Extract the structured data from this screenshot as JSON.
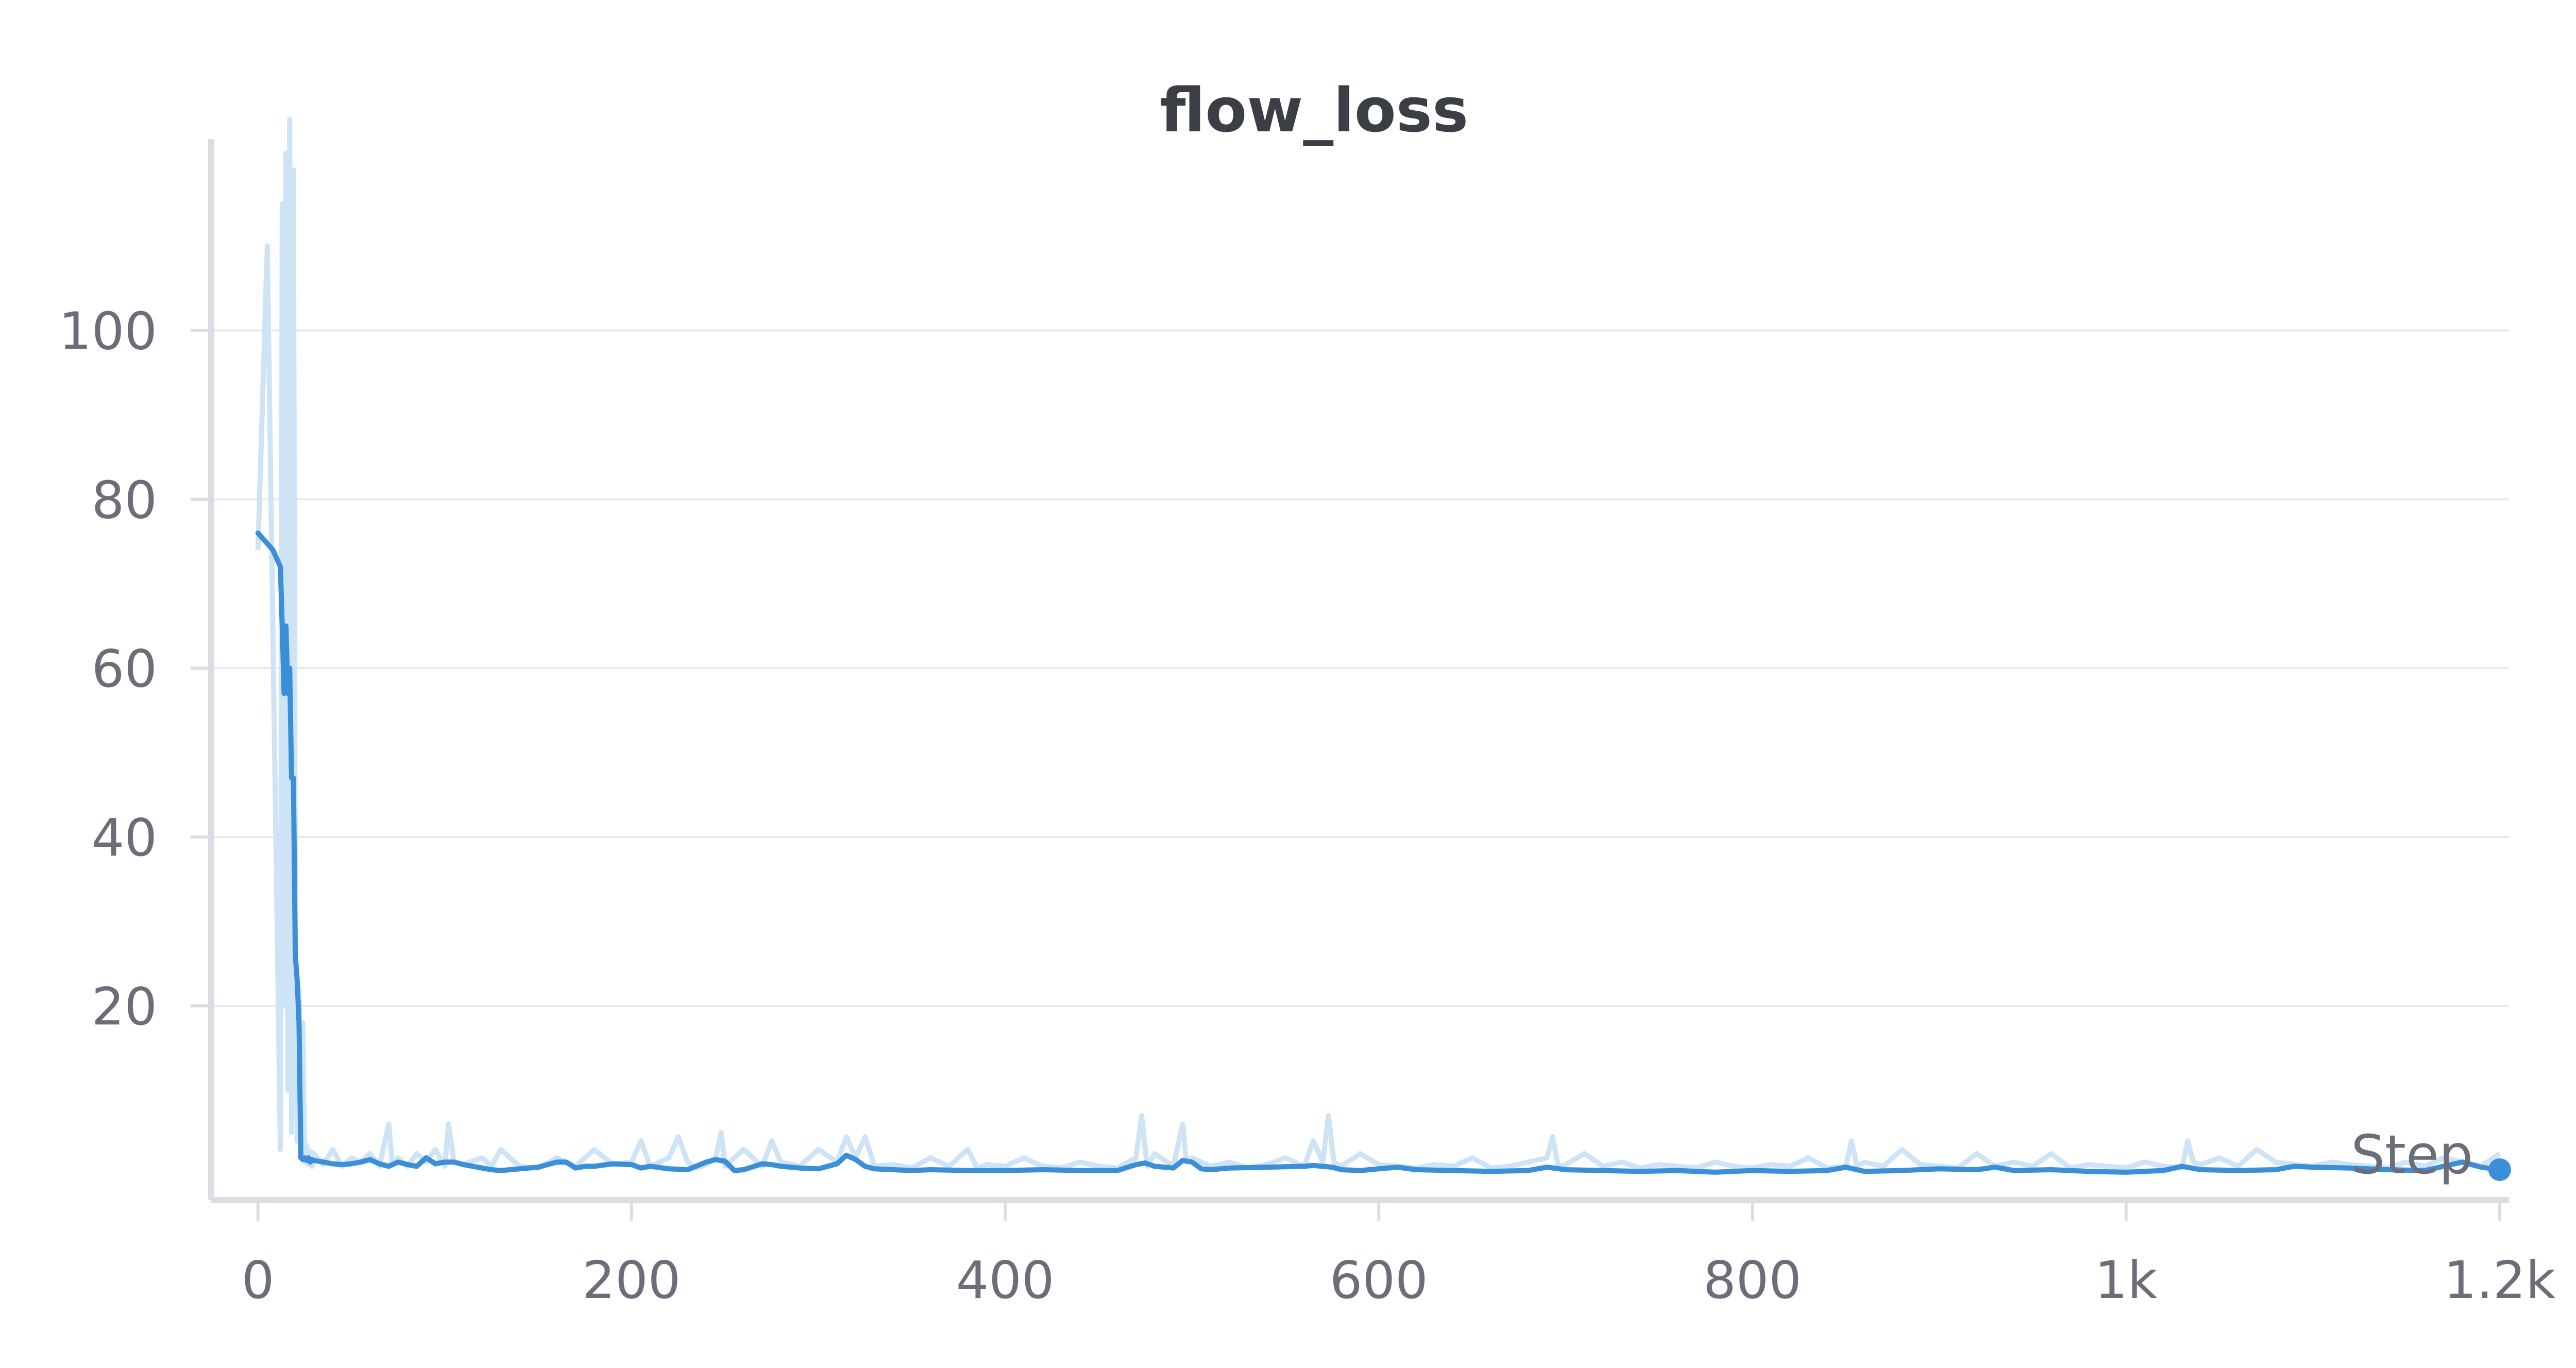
{
  "chart_data": {
    "type": "line",
    "title": "flow_loss",
    "xlabel": "Step",
    "ylabel": "",
    "xlim": [
      -25,
      1205
    ],
    "ylim": [
      -3,
      119
    ],
    "x_ticks": [
      {
        "value": 0,
        "label": "0"
      },
      {
        "value": 200,
        "label": "200"
      },
      {
        "value": 400,
        "label": "400"
      },
      {
        "value": 600,
        "label": "600"
      },
      {
        "value": 800,
        "label": "800"
      },
      {
        "value": 1000,
        "label": "1k"
      },
      {
        "value": 1200,
        "label": "1.2k"
      }
    ],
    "y_ticks": [
      {
        "value": 20,
        "label": "20"
      },
      {
        "value": 40,
        "label": "40"
      },
      {
        "value": 60,
        "label": "60"
      },
      {
        "value": 80,
        "label": "80"
      },
      {
        "value": 100,
        "label": "100"
      }
    ],
    "grid": true,
    "colors": {
      "smoothed": "#3a8fd8",
      "raw": "#cfe3f6",
      "grid": "#e8e9ee",
      "axis": "#dcdde2",
      "tick_text": "#6b6e78",
      "title_text": "#3b3f45"
    },
    "series": [
      {
        "role": "raw",
        "x": [
          0,
          5,
          12,
          13,
          14,
          15,
          16,
          17,
          18,
          19,
          20,
          21,
          22,
          23,
          24,
          25,
          26,
          27,
          28,
          29,
          30,
          35,
          40,
          45,
          50,
          55,
          60,
          65,
          70,
          72,
          75,
          80,
          85,
          90,
          95,
          100,
          102,
          105,
          110,
          120,
          125,
          130,
          140,
          150,
          160,
          170,
          180,
          190,
          200,
          205,
          210,
          220,
          225,
          230,
          235,
          240,
          245,
          248,
          250,
          260,
          270,
          275,
          280,
          290,
          300,
          310,
          315,
          320,
          325,
          330,
          340,
          350,
          360,
          370,
          380,
          385,
          390,
          400,
          410,
          420,
          430,
          440,
          450,
          460,
          470,
          473,
          476,
          480,
          490,
          495,
          497,
          500,
          510,
          520,
          530,
          540,
          550,
          560,
          565,
          570,
          573,
          576,
          580,
          590,
          600,
          610,
          620,
          630,
          640,
          650,
          660,
          670,
          680,
          690,
          693,
          696,
          700,
          710,
          720,
          730,
          740,
          750,
          760,
          770,
          780,
          790,
          800,
          810,
          820,
          830,
          840,
          850,
          853,
          856,
          860,
          870,
          880,
          890,
          900,
          910,
          920,
          930,
          940,
          950,
          960,
          970,
          980,
          990,
          1000,
          1010,
          1020,
          1030,
          1033,
          1036,
          1040,
          1050,
          1060,
          1070,
          1080,
          1090,
          1100,
          1110,
          1120,
          1130,
          1140,
          1150,
          1160,
          1170,
          1180,
          1190,
          1200
        ],
        "values": [
          74,
          110,
          3,
          115,
          20,
          121,
          10,
          125,
          5,
          119,
          30,
          4,
          22,
          2,
          18,
          1.5,
          3.5,
          1.2,
          2.8,
          1.0,
          2.5,
          1.2,
          3.0,
          1.0,
          2.0,
          1.5,
          2.5,
          1.0,
          6.0,
          1.2,
          2.0,
          1.0,
          2.5,
          1.5,
          3.0,
          1.0,
          6.0,
          1.5,
          1.2,
          2.0,
          1.0,
          3.0,
          1.0,
          0.8,
          2.0,
          1.0,
          3.0,
          1.2,
          1.5,
          4.0,
          1.0,
          2.0,
          4.5,
          1.5,
          0.8,
          1.2,
          2.0,
          5.0,
          1.0,
          3.0,
          1.0,
          4.0,
          1.5,
          1.0,
          3.0,
          1.5,
          4.5,
          2.0,
          4.5,
          1.0,
          1.2,
          0.8,
          2.0,
          1.0,
          3.0,
          0.8,
          1.2,
          1.0,
          2.0,
          1.0,
          0.8,
          1.5,
          1.0,
          0.8,
          2.0,
          7.0,
          1.0,
          2.5,
          1.0,
          6.0,
          1.5,
          2.0,
          1.0,
          1.5,
          0.8,
          1.2,
          2.0,
          1.0,
          4.0,
          1.5,
          7.0,
          1.5,
          1.0,
          2.5,
          1.2,
          1.0,
          0.8,
          1.2,
          1.0,
          2.0,
          0.8,
          1.0,
          1.5,
          2.0,
          4.5,
          1.0,
          1.2,
          2.5,
          1.0,
          1.5,
          0.8,
          1.2,
          1.0,
          0.8,
          1.5,
          1.0,
          0.8,
          1.2,
          1.0,
          2.0,
          0.8,
          1.0,
          4.0,
          1.0,
          1.5,
          1.0,
          3.0,
          1.2,
          1.0,
          0.8,
          2.5,
          1.0,
          1.5,
          1.0,
          2.5,
          0.8,
          1.2,
          1.0,
          0.8,
          1.5,
          1.0,
          0.8,
          4.0,
          1.5,
          1.2,
          2.0,
          1.0,
          3.0,
          1.5,
          1.2,
          1.0,
          1.5,
          1.2,
          1.0,
          0.8,
          1.5,
          1.0,
          2.0,
          1.5,
          1.0,
          2.5
        ],
        "name": ""
      },
      {
        "role": "smoothed",
        "x": [
          0,
          8,
          12,
          13,
          14,
          15,
          16,
          17,
          18,
          19,
          20,
          21,
          22,
          23,
          24,
          25,
          26,
          27,
          28,
          29,
          30,
          35,
          40,
          45,
          50,
          55,
          60,
          65,
          70,
          75,
          80,
          85,
          90,
          95,
          100,
          105,
          110,
          120,
          125,
          130,
          140,
          150,
          160,
          165,
          170,
          175,
          180,
          190,
          200,
          205,
          210,
          220,
          230,
          240,
          245,
          250,
          255,
          260,
          270,
          275,
          280,
          290,
          300,
          310,
          315,
          320,
          325,
          330,
          340,
          350,
          360,
          380,
          400,
          420,
          440,
          460,
          470,
          475,
          480,
          490,
          495,
          500,
          505,
          510,
          520,
          540,
          560,
          565,
          570,
          575,
          580,
          590,
          600,
          610,
          620,
          640,
          660,
          680,
          690,
          700,
          720,
          740,
          760,
          780,
          800,
          820,
          840,
          850,
          860,
          880,
          900,
          920,
          930,
          940,
          960,
          980,
          1000,
          1020,
          1030,
          1040,
          1060,
          1080,
          1090,
          1100,
          1120,
          1140,
          1160,
          1170,
          1180,
          1190,
          1200
        ],
        "values": [
          76,
          74,
          72,
          65,
          57,
          65,
          57,
          60,
          47,
          47,
          26,
          23,
          18,
          2.0,
          1.8,
          2.0,
          1.7,
          2.0,
          1.5,
          1.8,
          1.7,
          1.5,
          1.3,
          1.2,
          1.3,
          1.5,
          1.8,
          1.3,
          1.0,
          1.5,
          1.2,
          1.0,
          2.0,
          1.3,
          1.5,
          1.5,
          1.2,
          0.8,
          0.6,
          0.5,
          0.7,
          0.9,
          1.5,
          1.5,
          0.8,
          1.0,
          1.0,
          1.3,
          1.2,
          0.8,
          1.0,
          0.7,
          0.6,
          1.5,
          1.8,
          1.6,
          0.5,
          0.6,
          1.3,
          1.2,
          1.0,
          0.8,
          0.7,
          1.3,
          2.3,
          1.8,
          1.0,
          0.7,
          0.6,
          0.5,
          0.6,
          0.5,
          0.5,
          0.6,
          0.5,
          0.5,
          1.2,
          1.4,
          1.0,
          0.8,
          1.7,
          1.5,
          0.7,
          0.6,
          0.8,
          0.9,
          1.0,
          1.1,
          1.0,
          0.9,
          0.6,
          0.5,
          0.7,
          0.9,
          0.6,
          0.5,
          0.4,
          0.5,
          0.9,
          0.6,
          0.5,
          0.4,
          0.5,
          0.3,
          0.5,
          0.4,
          0.5,
          0.9,
          0.4,
          0.5,
          0.7,
          0.6,
          0.9,
          0.5,
          0.6,
          0.4,
          0.3,
          0.5,
          1.0,
          0.6,
          0.5,
          0.6,
          1.0,
          0.9,
          0.8,
          0.6,
          0.5,
          1.0,
          1.5,
          0.9,
          0.6
        ],
        "name": ""
      }
    ]
  }
}
